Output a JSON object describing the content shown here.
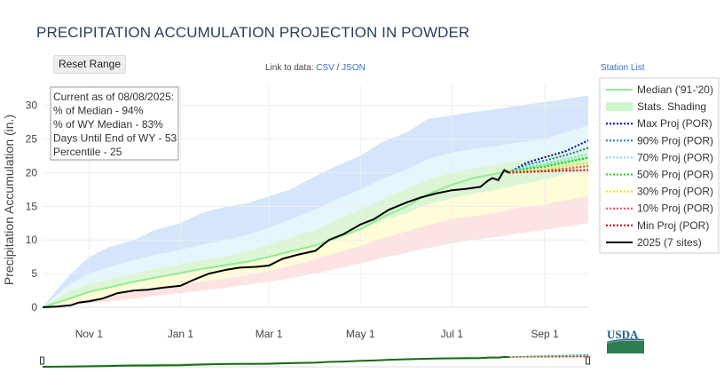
{
  "header": {
    "title": "PRECIPITATION ACCUMULATION PROJECTION IN POWDER"
  },
  "controls": {
    "reset_label": "Reset Range",
    "link_prefix": "Link to data: ",
    "csv_label": "CSV",
    "link_sep": " / ",
    "json_label": "JSON",
    "station_list_label": "Station List"
  },
  "info_box": {
    "lines": [
      "Current as of 08/08/2025:",
      "% of Median - 94%",
      "% of WY Median - 83%",
      "Days Until End of WY - 53",
      "Percentile - 25"
    ]
  },
  "logo": {
    "text": "USDA"
  },
  "colors": {
    "median": "#90ee90",
    "stats_shading": "#ccf5cc",
    "band_outer": "#d0e2fb",
    "band_light": "#e2f6fc",
    "band_mid_green": "#d8f5d0",
    "band_yellow": "#fffcd4",
    "band_red": "#fde0e0",
    "current_year": "#000000",
    "max_proj": "#0000cc",
    "p90_proj": "#1f77d4",
    "p70_proj": "#7fd8f0",
    "p50_proj": "#22cc22",
    "p30_proj": "#e6e600",
    "p10_proj": "#ff4040",
    "min_proj": "#cc0000"
  },
  "chart_data": {
    "type": "line",
    "title": "PRECIPITATION ACCUMULATION PROJECTION IN POWDER",
    "ylabel": "Precipitation Accumulation (in.)",
    "xlabel": "",
    "ylim": [
      0,
      33
    ],
    "yticks": [
      0,
      5,
      10,
      15,
      20,
      25,
      30
    ],
    "x_start": "2024-10-01",
    "x_end": "2025-09-30",
    "xticks": [
      {
        "date": "2024-11-01",
        "label": "Nov  1"
      },
      {
        "date": "2025-01-01",
        "label": "Jan  1"
      },
      {
        "date": "2025-03-01",
        "label": "Mar  1"
      },
      {
        "date": "2025-05-01",
        "label": "May  1"
      },
      {
        "date": "2025-07-01",
        "label": "Jul  1"
      },
      {
        "date": "2025-09-01",
        "label": "Sep  1"
      }
    ],
    "grid": true,
    "legend_position": "right",
    "legend": [
      "Median ('91-'20)",
      "Stats. Shading",
      "Max Proj (POR)",
      "90% Proj (POR)",
      "70% Proj (POR)",
      "50% Proj (POR)",
      "30% Proj (POR)",
      "10% Proj (POR)",
      "Min Proj (POR)",
      "2025 (7 sites)"
    ],
    "bands": {
      "dates": [
        "2024-10-01",
        "2024-10-10",
        "2024-10-20",
        "2024-11-01",
        "2024-11-15",
        "2024-12-01",
        "2024-12-15",
        "2025-01-01",
        "2025-01-15",
        "2025-02-01",
        "2025-02-15",
        "2025-03-01",
        "2025-03-15",
        "2025-04-01",
        "2025-04-15",
        "2025-05-01",
        "2025-05-15",
        "2025-06-01",
        "2025-06-15",
        "2025-07-01",
        "2025-07-15",
        "2025-08-01",
        "2025-08-15",
        "2025-09-01",
        "2025-09-15",
        "2025-09-30"
      ],
      "max": [
        0.0,
        2.5,
        5.0,
        7.5,
        9.0,
        10.0,
        11.5,
        12.5,
        14.0,
        15.0,
        15.5,
        16.5,
        17.5,
        19.5,
        21.0,
        22.5,
        24.5,
        26.0,
        28.0,
        28.5,
        29.0,
        29.5,
        30.0,
        30.5,
        31.0,
        31.5
      ],
      "p90": [
        0.0,
        1.8,
        3.5,
        5.0,
        6.0,
        7.0,
        7.8,
        8.5,
        9.3,
        10.0,
        10.8,
        11.8,
        13.0,
        14.5,
        16.0,
        17.5,
        19.0,
        20.5,
        22.0,
        23.0,
        23.5,
        24.0,
        24.5,
        25.0,
        26.0,
        27.0
      ],
      "p70": [
        0.0,
        1.2,
        2.5,
        3.5,
        4.2,
        5.0,
        5.7,
        6.4,
        7.0,
        7.6,
        8.4,
        9.3,
        10.3,
        11.5,
        13.0,
        14.5,
        16.0,
        17.6,
        19.0,
        20.0,
        20.6,
        21.2,
        21.8,
        22.5,
        23.3,
        24.0
      ],
      "p30": [
        0.0,
        0.5,
        1.4,
        2.3,
        3.0,
        3.7,
        4.3,
        5.0,
        5.5,
        6.0,
        6.6,
        7.3,
        8.0,
        9.2,
        10.3,
        11.5,
        12.8,
        14.0,
        15.3,
        16.2,
        16.8,
        17.5,
        18.2,
        19.0,
        19.8,
        20.5
      ],
      "p10": [
        0.0,
        0.2,
        0.6,
        1.2,
        1.7,
        2.3,
        2.8,
        3.3,
        3.8,
        4.3,
        4.8,
        5.4,
        6.1,
        7.1,
        8.1,
        9.1,
        10.2,
        11.3,
        12.2,
        13.1,
        13.5,
        14.1,
        14.8,
        15.3,
        15.9,
        16.5
      ],
      "min": [
        0.0,
        0.1,
        0.3,
        0.6,
        0.9,
        1.3,
        1.7,
        2.1,
        2.5,
        2.9,
        3.4,
        3.8,
        4.3,
        5.0,
        5.7,
        6.5,
        7.3,
        8.1,
        8.8,
        9.5,
        10.0,
        10.5,
        11.0,
        11.5,
        12.0,
        12.5
      ]
    },
    "median": {
      "dates": [
        "2024-10-01",
        "2024-10-15",
        "2024-11-01",
        "2024-11-15",
        "2024-12-01",
        "2024-12-15",
        "2025-01-01",
        "2025-01-15",
        "2025-02-01",
        "2025-02-15",
        "2025-03-01",
        "2025-03-15",
        "2025-04-01",
        "2025-04-15",
        "2025-05-01",
        "2025-05-15",
        "2025-06-01",
        "2025-06-15",
        "2025-07-01",
        "2025-07-15",
        "2025-08-01",
        "2025-08-15",
        "2025-09-01",
        "2025-09-15",
        "2025-09-30"
      ],
      "values": [
        0.0,
        1.0,
        2.3,
        3.0,
        3.8,
        4.4,
        5.1,
        5.7,
        6.3,
        6.8,
        7.5,
        8.3,
        9.2,
        10.3,
        11.6,
        13.3,
        15.0,
        16.8,
        18.2,
        19.2,
        19.9,
        20.5,
        21.1,
        21.7,
        22.3
      ]
    },
    "current_year": {
      "name": "2025 (7 sites)",
      "dates": [
        "2024-10-01",
        "2024-10-10",
        "2024-10-20",
        "2024-10-25",
        "2024-11-01",
        "2024-11-10",
        "2024-11-20",
        "2024-12-01",
        "2024-12-10",
        "2024-12-20",
        "2025-01-01",
        "2025-01-10",
        "2025-01-20",
        "2025-02-01",
        "2025-02-10",
        "2025-02-20",
        "2025-03-01",
        "2025-03-10",
        "2025-03-20",
        "2025-04-01",
        "2025-04-10",
        "2025-04-20",
        "2025-05-01",
        "2025-05-10",
        "2025-05-20",
        "2025-06-01",
        "2025-06-10",
        "2025-06-20",
        "2025-07-01",
        "2025-07-10",
        "2025-07-20",
        "2025-07-25",
        "2025-07-28",
        "2025-08-01",
        "2025-08-05",
        "2025-08-08"
      ],
      "values": [
        0.0,
        0.1,
        0.3,
        0.7,
        0.9,
        1.3,
        2.1,
        2.5,
        2.6,
        2.9,
        3.2,
        4.1,
        5.0,
        5.6,
        5.9,
        6.0,
        6.2,
        7.2,
        7.8,
        8.4,
        10.0,
        10.9,
        12.3,
        13.1,
        14.5,
        15.6,
        16.3,
        16.9,
        17.4,
        17.6,
        17.9,
        18.8,
        19.2,
        18.9,
        20.4,
        20.0
      ]
    },
    "projections": {
      "dates": [
        "2025-08-08",
        "2025-08-20",
        "2025-09-01",
        "2025-09-15",
        "2025-09-30"
      ],
      "series": [
        {
          "name": "Max Proj (POR)",
          "values": [
            20.0,
            21.5,
            22.3,
            23.2,
            24.8
          ]
        },
        {
          "name": "90% Proj (POR)",
          "values": [
            20.0,
            21.2,
            21.8,
            22.6,
            23.7
          ]
        },
        {
          "name": "70% Proj (POR)",
          "values": [
            20.0,
            20.9,
            21.3,
            22.0,
            22.8
          ]
        },
        {
          "name": "50% Proj (POR)",
          "values": [
            20.0,
            20.6,
            20.9,
            21.5,
            22.2
          ]
        },
        {
          "name": "30% Proj (POR)",
          "values": [
            20.0,
            20.3,
            20.5,
            21.0,
            21.5
          ]
        },
        {
          "name": "10% Proj (POR)",
          "values": [
            20.0,
            20.2,
            20.3,
            20.6,
            21.0
          ]
        },
        {
          "name": "Min Proj (POR)",
          "values": [
            20.0,
            20.1,
            20.2,
            20.3,
            20.4
          ]
        }
      ]
    }
  }
}
